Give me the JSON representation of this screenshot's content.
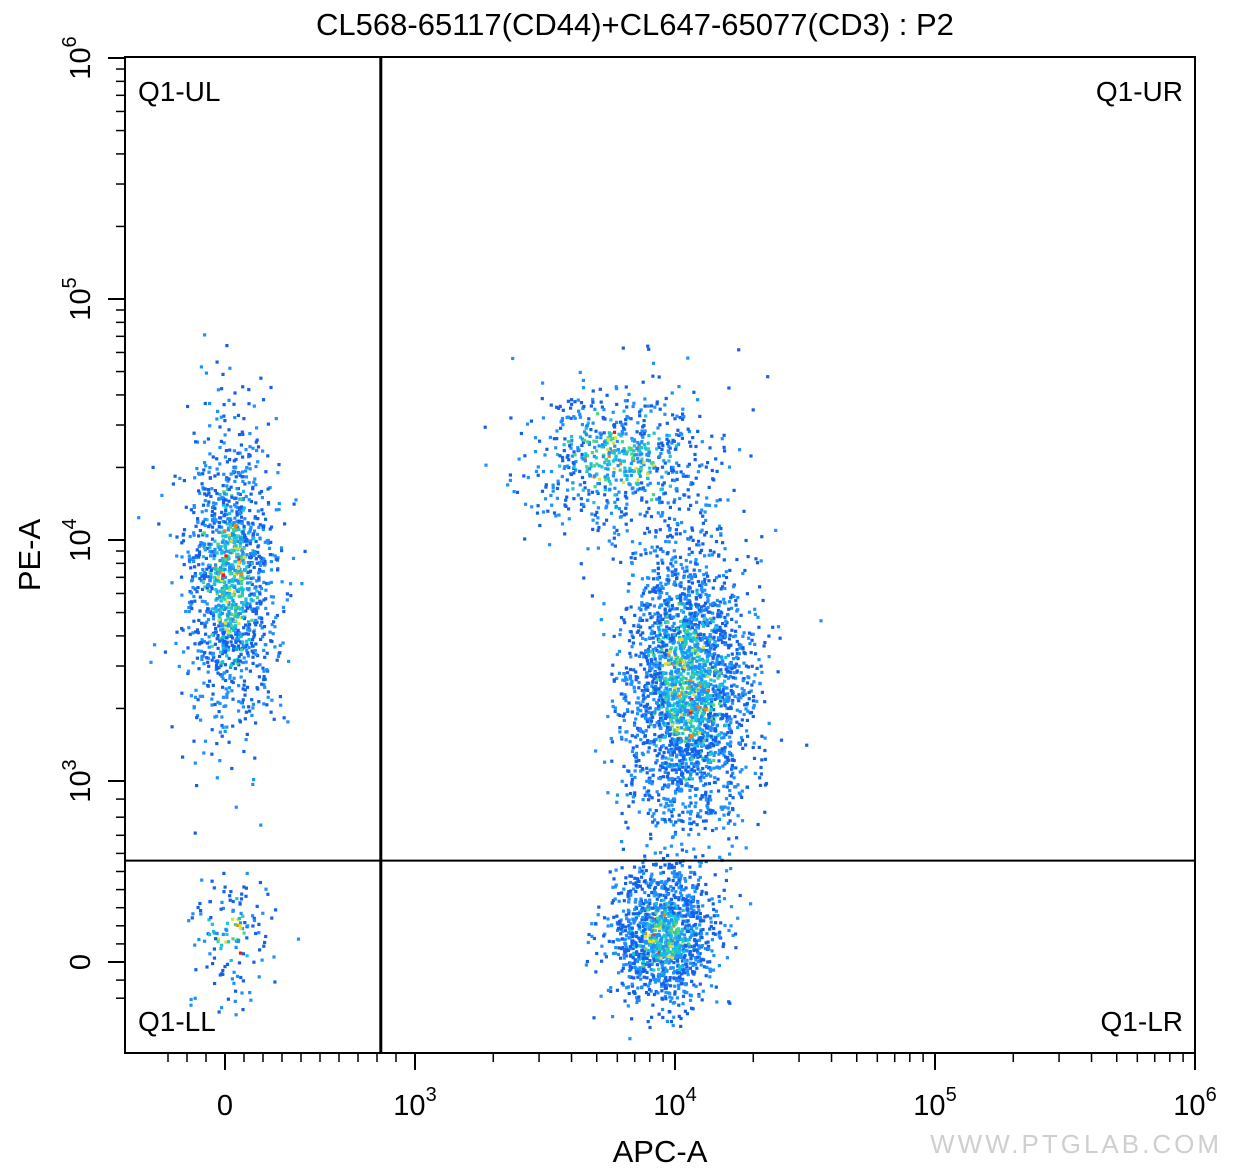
{
  "chart_data": {
    "type": "scatter",
    "title": "CL568-65117(CD44)+CL647-65077(CD3) : P2",
    "xlabel": "APC-A",
    "ylabel": "PE-A",
    "x_scale": "biexponential",
    "y_scale": "biexponential",
    "xlim": [
      -400,
      1000000
    ],
    "ylim": [
      -300,
      1000000
    ],
    "x_ticks": [
      {
        "value": 0,
        "base": "0",
        "exp": ""
      },
      {
        "value": 1000,
        "base": "10",
        "exp": "3"
      },
      {
        "value": 10000,
        "base": "10",
        "exp": "4"
      },
      {
        "value": 100000,
        "base": "10",
        "exp": "5"
      },
      {
        "value": 1000000,
        "base": "10",
        "exp": "6"
      }
    ],
    "y_ticks": [
      {
        "value": 0,
        "base": "0",
        "exp": ""
      },
      {
        "value": 1000,
        "base": "10",
        "exp": "3"
      },
      {
        "value": 10000,
        "base": "10",
        "exp": "4"
      },
      {
        "value": 100000,
        "base": "10",
        "exp": "5"
      },
      {
        "value": 1000000,
        "base": "10",
        "exp": "6"
      }
    ],
    "gate": {
      "x": 820,
      "y": 560
    },
    "quadrants": [
      "Q1-UL",
      "Q1-UR",
      "Q1-LL",
      "Q1-LR"
    ],
    "populations": [
      {
        "region": "Q1-UL",
        "x_center": 20,
        "x_spread": 120,
        "y_center": 7000,
        "y_spread_decades": 0.3,
        "events": 1400
      },
      {
        "region": "Q1-UR",
        "x_center": 11000,
        "x_spread_decades": 0.12,
        "y_center": 2500,
        "y_spread_decades": 0.3,
        "events": 2600
      },
      {
        "region": "Q1-UR",
        "x_center": 6000,
        "x_spread_decades": 0.18,
        "y_center": 22000,
        "y_spread_decades": 0.15,
        "events": 700
      },
      {
        "region": "Q1-LR",
        "x_center": 9000,
        "x_spread_decades": 0.1,
        "y_center": 150,
        "y_spread": 180,
        "events": 1300
      },
      {
        "region": "Q1-LL",
        "x_center": 20,
        "x_spread": 100,
        "y_center": 150,
        "y_spread": 180,
        "events": 140
      }
    ],
    "density_colors": [
      "#1560e8",
      "#1e90ff",
      "#19c3d8",
      "#4ad67f",
      "#e0e030",
      "#ff8000",
      "#ff1010"
    ],
    "grid": false,
    "legend": "none"
  },
  "watermark": "WWW.PTGLAB.COM"
}
